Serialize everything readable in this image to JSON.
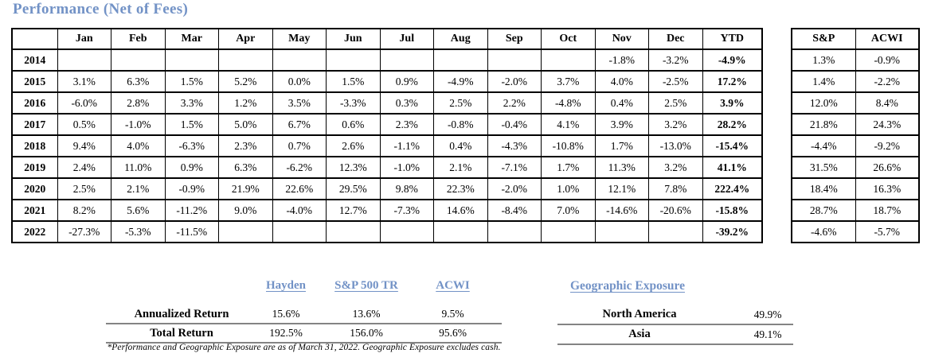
{
  "title": "Performance (Net of Fees)",
  "colors": {
    "accent_blue": "#7292c6",
    "table_border": "#000000",
    "rule_gray": "#848484"
  },
  "performance_table": {
    "corner_label": "",
    "month_columns": [
      "Jan",
      "Feb",
      "Mar",
      "Apr",
      "May",
      "Jun",
      "Jul",
      "Aug",
      "Sep",
      "Oct",
      "Nov",
      "Dec"
    ],
    "ytd_column": "YTD",
    "rows": [
      {
        "year": "2014",
        "months": [
          "",
          "",
          "",
          "",
          "",
          "",
          "",
          "",
          "",
          "",
          "-1.8%",
          "-3.2%"
        ],
        "ytd": "-4.9%"
      },
      {
        "year": "2015",
        "months": [
          "3.1%",
          "6.3%",
          "1.5%",
          "5.2%",
          "0.0%",
          "1.5%",
          "0.9%",
          "-4.9%",
          "-2.0%",
          "3.7%",
          "4.0%",
          "-2.5%"
        ],
        "ytd": "17.2%"
      },
      {
        "year": "2016",
        "months": [
          "-6.0%",
          "2.8%",
          "3.3%",
          "1.2%",
          "3.5%",
          "-3.3%",
          "0.3%",
          "2.5%",
          "2.2%",
          "-4.8%",
          "0.4%",
          "2.5%"
        ],
        "ytd": "3.9%"
      },
      {
        "year": "2017",
        "months": [
          "0.5%",
          "-1.0%",
          "1.5%",
          "5.0%",
          "6.7%",
          "0.6%",
          "2.3%",
          "-0.8%",
          "-0.4%",
          "4.1%",
          "3.9%",
          "3.2%"
        ],
        "ytd": "28.2%"
      },
      {
        "year": "2018",
        "months": [
          "9.4%",
          "4.0%",
          "-6.3%",
          "2.3%",
          "0.7%",
          "2.6%",
          "-1.1%",
          "0.4%",
          "-4.3%",
          "-10.8%",
          "1.7%",
          "-13.0%"
        ],
        "ytd": "-15.4%"
      },
      {
        "year": "2019",
        "months": [
          "2.4%",
          "11.0%",
          "0.9%",
          "6.3%",
          "-6.2%",
          "12.3%",
          "-1.0%",
          "2.1%",
          "-7.1%",
          "1.7%",
          "11.3%",
          "3.2%"
        ],
        "ytd": "41.1%"
      },
      {
        "year": "2020",
        "months": [
          "2.5%",
          "2.1%",
          "-0.9%",
          "21.9%",
          "22.6%",
          "29.5%",
          "9.8%",
          "22.3%",
          "-2.0%",
          "1.0%",
          "12.1%",
          "7.8%"
        ],
        "ytd": "222.4%"
      },
      {
        "year": "2021",
        "months": [
          "8.2%",
          "5.6%",
          "-11.2%",
          "9.0%",
          "-4.0%",
          "12.7%",
          "-7.3%",
          "14.6%",
          "-8.4%",
          "7.0%",
          "-14.6%",
          "-20.6%"
        ],
        "ytd": "-15.8%"
      },
      {
        "year": "2022",
        "months": [
          "-27.3%",
          "-5.3%",
          "-11.5%",
          "",
          "",
          "",
          "",
          "",
          "",
          "",
          "",
          ""
        ],
        "ytd": "-39.2%"
      }
    ]
  },
  "benchmark_table": {
    "columns": [
      "S&P",
      "ACWI"
    ],
    "rows": [
      [
        "1.3%",
        "-0.9%"
      ],
      [
        "1.4%",
        "-2.2%"
      ],
      [
        "12.0%",
        "8.4%"
      ],
      [
        "21.8%",
        "24.3%"
      ],
      [
        "-4.4%",
        "-9.2%"
      ],
      [
        "31.5%",
        "26.6%"
      ],
      [
        "18.4%",
        "16.3%"
      ],
      [
        "28.7%",
        "18.7%"
      ],
      [
        "-4.6%",
        "-5.7%"
      ]
    ]
  },
  "summary_table": {
    "columns": [
      "Hayden",
      "S&P 500 TR",
      "ACWI"
    ],
    "rows": [
      {
        "label": "Annualized Return",
        "values": [
          "15.6%",
          "13.6%",
          "9.5%"
        ]
      },
      {
        "label": "Total Return",
        "values": [
          "192.5%",
          "156.0%",
          "95.6%"
        ]
      }
    ]
  },
  "geographic_exposure": {
    "title": "Geographic Exposure",
    "rows": [
      {
        "label": "North America",
        "value": "49.9%"
      },
      {
        "label": "Asia",
        "value": "49.1%"
      }
    ]
  },
  "footnote": "*Performance and Geographic Exposure are as of March 31, 2022. Geographic Exposure excludes cash."
}
